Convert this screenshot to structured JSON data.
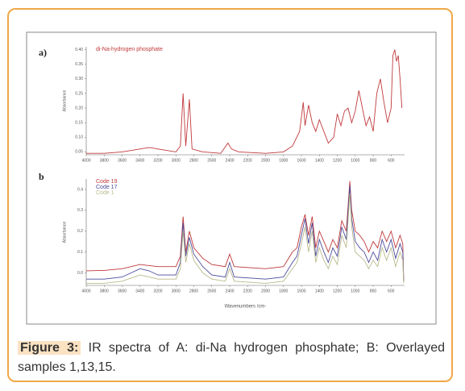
{
  "chart_data": [
    {
      "type": "line",
      "label": "a)",
      "ylabel": "Absorbance",
      "x": [
        4000,
        3800,
        3600,
        3400,
        3300,
        3200,
        3000,
        2950,
        2920,
        2890,
        2850,
        2820,
        2700,
        2500,
        2420,
        2380,
        2300,
        2000,
        1800,
        1700,
        1620,
        1580,
        1560,
        1520,
        1480,
        1440,
        1400,
        1300,
        1240,
        1200,
        1160,
        1120,
        1080,
        1040,
        1000,
        960,
        920,
        880,
        840,
        800,
        760,
        720,
        680,
        640,
        600,
        580,
        560,
        540,
        520,
        500,
        480
      ],
      "series": [
        {
          "name": "di-Na-hydrogen phosphate",
          "color": "#c0393b",
          "values": [
            0.045,
            0.045,
            0.05,
            0.06,
            0.065,
            0.06,
            0.05,
            0.07,
            0.25,
            0.07,
            0.23,
            0.06,
            0.05,
            0.045,
            0.08,
            0.06,
            0.05,
            0.045,
            0.05,
            0.07,
            0.12,
            0.22,
            0.14,
            0.21,
            0.15,
            0.12,
            0.16,
            0.08,
            0.1,
            0.18,
            0.14,
            0.19,
            0.2,
            0.15,
            0.19,
            0.26,
            0.2,
            0.14,
            0.17,
            0.12,
            0.25,
            0.3,
            0.22,
            0.15,
            0.2,
            0.38,
            0.4,
            0.36,
            0.38,
            0.3,
            0.2
          ]
        }
      ],
      "xlim": [
        4000,
        450
      ],
      "xticks": [
        4000,
        3800,
        3600,
        3400,
        3200,
        3000,
        2800,
        2600,
        2400,
        2200,
        2000,
        1800,
        1600,
        1400,
        1200,
        1000,
        800,
        600
      ],
      "ylim": [
        0.04,
        0.41
      ],
      "yticks": [
        0.05,
        {
          "value": 0.1,
          "label": "0.10"
        },
        0.15,
        {
          "value": 0.2,
          "label": "0.20"
        },
        0.25,
        {
          "value": 0.3,
          "label": "0.30"
        },
        0.35,
        {
          "value": 0.4,
          "label": "0.40"
        }
      ]
    },
    {
      "type": "line",
      "label": "b",
      "ylabel": "Absorbance",
      "xlabel": "Wavenumbers /cm-",
      "x": [
        4000,
        3800,
        3600,
        3400,
        3300,
        3200,
        3000,
        2950,
        2920,
        2890,
        2850,
        2800,
        2700,
        2600,
        2450,
        2400,
        2350,
        2000,
        1800,
        1700,
        1650,
        1600,
        1560,
        1520,
        1480,
        1440,
        1400,
        1350,
        1300,
        1250,
        1200,
        1150,
        1100,
        1060,
        1040,
        1000,
        950,
        900,
        850,
        800,
        750,
        700,
        650,
        600,
        550,
        500,
        470,
        460
      ],
      "series": [
        {
          "name": "Code 19",
          "color": "#c0393b",
          "values": [
            0.01,
            0.012,
            0.02,
            0.04,
            0.035,
            0.03,
            0.03,
            0.08,
            0.27,
            0.1,
            0.2,
            0.12,
            0.07,
            0.04,
            0.03,
            0.09,
            0.03,
            0.02,
            0.03,
            0.1,
            0.12,
            0.22,
            0.28,
            0.18,
            0.27,
            0.12,
            0.2,
            0.15,
            0.1,
            0.16,
            0.12,
            0.25,
            0.2,
            0.44,
            0.3,
            0.2,
            0.18,
            0.15,
            0.1,
            0.15,
            0.12,
            0.2,
            0.15,
            0.2,
            0.12,
            0.18,
            0.14,
            -0.04
          ]
        },
        {
          "name": "Code 17",
          "color": "#4a4a9c",
          "values": [
            -0.03,
            -0.03,
            -0.02,
            0.02,
            0.01,
            -0.01,
            -0.01,
            0.05,
            0.24,
            0.08,
            0.17,
            0.09,
            0.03,
            -0.01,
            -0.02,
            0.05,
            -0.02,
            -0.03,
            -0.02,
            0.05,
            0.08,
            0.18,
            0.26,
            0.14,
            0.24,
            0.08,
            0.16,
            0.1,
            0.05,
            0.12,
            0.08,
            0.22,
            0.16,
            0.42,
            0.26,
            0.15,
            0.12,
            0.1,
            0.05,
            0.1,
            0.06,
            0.16,
            0.1,
            0.16,
            0.07,
            0.14,
            0.1,
            -0.04
          ]
        },
        {
          "name": "Code 1",
          "color": "#b9b98c",
          "values": [
            -0.05,
            -0.05,
            -0.04,
            -0.01,
            -0.02,
            -0.03,
            -0.03,
            0.02,
            0.2,
            0.05,
            0.14,
            0.06,
            0.0,
            -0.03,
            -0.04,
            0.02,
            -0.04,
            -0.05,
            -0.04,
            0.02,
            0.05,
            0.14,
            0.22,
            0.1,
            0.2,
            0.05,
            0.12,
            0.06,
            0.02,
            0.08,
            0.04,
            0.18,
            0.12,
            0.38,
            0.22,
            0.1,
            0.08,
            0.06,
            0.02,
            0.06,
            0.03,
            0.12,
            0.06,
            0.12,
            0.03,
            0.1,
            0.06,
            -0.05
          ]
        }
      ],
      "xlim": [
        4000,
        450
      ],
      "xticks": [
        4000,
        3800,
        3600,
        3400,
        3200,
        3000,
        2800,
        2600,
        2400,
        2200,
        2000,
        1800,
        1600,
        1400,
        1200,
        1000,
        800,
        600
      ],
      "ylim": [
        -0.06,
        0.45
      ],
      "yticks": [
        {
          "value": 0,
          "label": "0.0"
        },
        0.1,
        0.2,
        0.3,
        0.4
      ]
    }
  ],
  "caption": {
    "label": "Figure 3:",
    "text": "IR spectra of A: di-Na hydrogen phosphate; B: Overlayed samples 1,13,15."
  }
}
